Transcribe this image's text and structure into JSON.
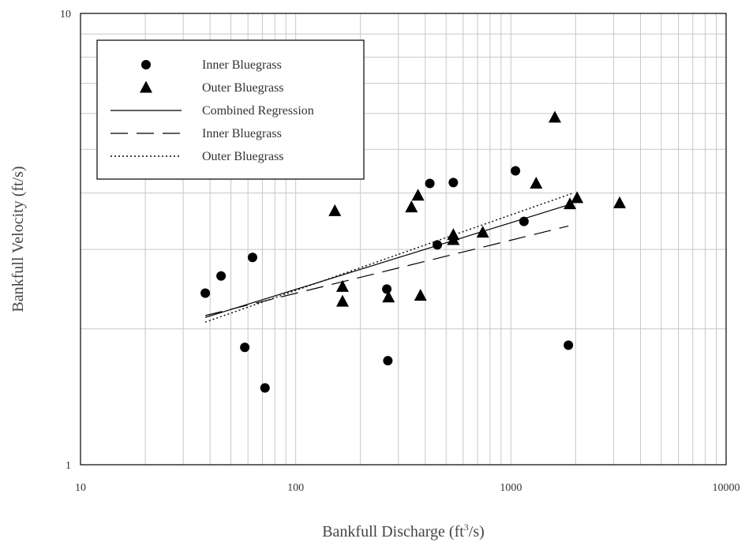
{
  "chart_data": {
    "type": "scatter",
    "title": "",
    "xlabel": "Bankfull Discharge (ft",
    "xlabel_sup": "3",
    "xlabel_suffix": "/s)",
    "ylabel": "Bankfull Velocity (ft/s)",
    "x_scale": "log",
    "y_scale": "log",
    "xlim": [
      10,
      10000
    ],
    "ylim": [
      1,
      10
    ],
    "x_tick_labels": [
      "10",
      "100",
      "1000",
      "10000"
    ],
    "x_tick_values": [
      10,
      100,
      1000,
      10000
    ],
    "y_tick_labels": [
      "1",
      "10"
    ],
    "y_tick_values": [
      1,
      10
    ],
    "grid": true,
    "legend_position": "top-left",
    "colors": {
      "marker": "#000000",
      "line": "#000000",
      "grid": "#c8c8c8",
      "axis": "#000000"
    },
    "series": [
      {
        "name": "Inner Bluegrass",
        "kind": "points",
        "marker": "circle",
        "points": [
          [
            38,
            2.4
          ],
          [
            45,
            2.62
          ],
          [
            58,
            1.82
          ],
          [
            63,
            2.88
          ],
          [
            72,
            1.48
          ],
          [
            265,
            2.45
          ],
          [
            268,
            1.7
          ],
          [
            420,
            4.2
          ],
          [
            455,
            3.07
          ],
          [
            540,
            4.22
          ],
          [
            1050,
            4.48
          ],
          [
            1150,
            3.46
          ],
          [
            1850,
            1.84
          ]
        ]
      },
      {
        "name": "Outer Bluegrass",
        "kind": "points",
        "marker": "triangle",
        "points": [
          [
            152,
            3.65
          ],
          [
            165,
            2.48
          ],
          [
            165,
            2.3
          ],
          [
            270,
            2.35
          ],
          [
            345,
            3.72
          ],
          [
            370,
            3.95
          ],
          [
            380,
            2.37
          ],
          [
            540,
            3.15
          ],
          [
            540,
            3.23
          ],
          [
            740,
            3.27
          ],
          [
            1310,
            4.2
          ],
          [
            1600,
            5.88
          ],
          [
            1880,
            3.78
          ],
          [
            2030,
            3.9
          ],
          [
            3200,
            3.8
          ]
        ]
      },
      {
        "name": "Combined Regression",
        "kind": "line",
        "dash": "solid",
        "points": [
          [
            38,
            2.12
          ],
          [
            1900,
            3.78
          ]
        ]
      },
      {
        "name": "Inner Bluegrass",
        "kind": "line",
        "dash": "long-dash",
        "points": [
          [
            38,
            2.14
          ],
          [
            1850,
            3.38
          ]
        ]
      },
      {
        "name": "Outer Bluegrass",
        "kind": "line",
        "dash": "dotted",
        "points": [
          [
            38,
            2.07
          ],
          [
            1950,
            4.0
          ]
        ]
      }
    ]
  }
}
